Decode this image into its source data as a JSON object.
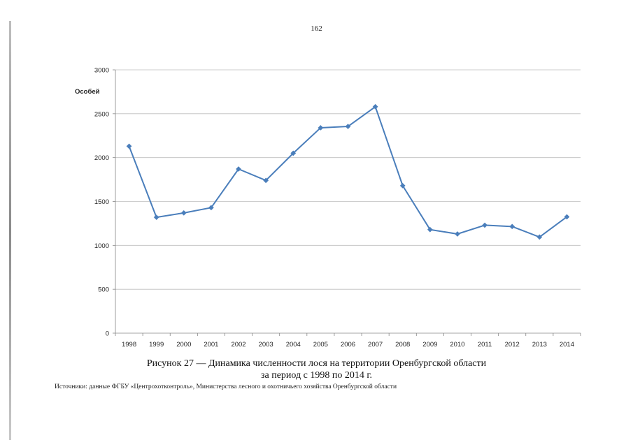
{
  "page_number": "162",
  "caption": {
    "line1": "Рисунок 27 — Динамика численности лося на территории Оренбургской области",
    "line2": "за период с 1998 по 2014 г."
  },
  "source": "Источники: данные ФГБУ «Центрохотконтроль», Министерства лесного и охотничьего хозяйства Оренбургской области",
  "colors": {
    "series": "#4A7EBB",
    "grid": "#BEBEBE",
    "axis": "#868686"
  },
  "chart_data": {
    "type": "line",
    "title": "",
    "ylabel": "Особей",
    "xlabel": "",
    "categories": [
      "1998",
      "1999",
      "2000",
      "2001",
      "2002",
      "2003",
      "2004",
      "2005",
      "2006",
      "2007",
      "2008",
      "2009",
      "2010",
      "2011",
      "2012",
      "2013",
      "2014"
    ],
    "series": [
      {
        "name": "Численность лося",
        "values": [
          2130,
          1320,
          1370,
          1430,
          1870,
          1740,
          2050,
          2340,
          2355,
          2580,
          1680,
          1180,
          1130,
          1230,
          1215,
          1095,
          1325
        ]
      }
    ],
    "ylim": [
      0,
      3000
    ],
    "yticks": [
      0,
      500,
      1000,
      1500,
      2000,
      2500,
      3000
    ],
    "grid": true,
    "legend": "none"
  }
}
